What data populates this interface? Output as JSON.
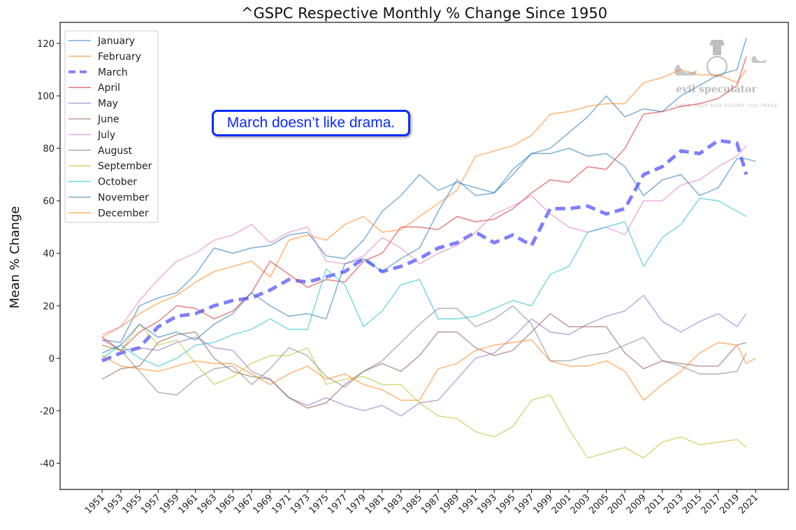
{
  "chart_data": {
    "type": "line",
    "title": "^GSPC Respective Monthly % Change Since 1950",
    "xlabel": "",
    "ylabel": "Mean % Change",
    "ylim": [
      -50,
      128
    ],
    "xlim": [
      1946.5,
      2024.5
    ],
    "yticks": [
      -40,
      -20,
      0,
      20,
      40,
      60,
      80,
      100,
      120
    ],
    "xticks": [
      1951,
      1953,
      1955,
      1957,
      1959,
      1961,
      1963,
      1965,
      1967,
      1969,
      1971,
      1973,
      1975,
      1977,
      1979,
      1981,
      1983,
      1985,
      1987,
      1989,
      1991,
      1993,
      1995,
      1997,
      1999,
      2001,
      2003,
      2005,
      2007,
      2009,
      2011,
      2013,
      2015,
      2017,
      2019,
      2021
    ],
    "legend_position": "top-left",
    "grid": false,
    "annotation": "March doesn’t like drama.",
    "watermark": {
      "name": "evil speculator",
      "tagline": "KNOW YOUR RISK BEFORE YOU TRADE"
    },
    "x": [
      1951,
      1953,
      1955,
      1957,
      1959,
      1961,
      1963,
      1965,
      1967,
      1969,
      1971,
      1973,
      1975,
      1977,
      1979,
      1981,
      1983,
      1985,
      1987,
      1989,
      1991,
      1993,
      1995,
      1997,
      1999,
      2001,
      2003,
      2005,
      2007,
      2009,
      2011,
      2013,
      2015,
      2017,
      2019,
      2020,
      2021
    ],
    "series": [
      {
        "name": "January",
        "color": "#1f77b4",
        "dashed": false,
        "values": [
          7,
          6,
          20,
          23,
          25,
          32,
          42,
          40,
          42,
          43,
          47,
          48,
          39,
          38,
          45,
          56,
          62,
          70,
          64,
          67,
          65,
          63,
          72,
          78,
          80,
          86,
          92,
          100,
          92,
          95,
          94,
          100,
          104,
          108,
          110,
          122,
          null
        ]
      },
      {
        "name": "February",
        "color": "#ff7f0e",
        "dashed": false,
        "values": [
          8,
          12,
          17,
          21,
          24,
          29,
          33,
          35,
          37,
          31,
          45,
          47,
          45,
          51,
          54,
          48,
          49,
          54,
          59,
          64,
          77,
          79,
          81,
          85,
          93,
          94,
          96,
          97,
          97,
          105,
          107,
          110,
          108,
          108,
          105,
          110,
          null
        ]
      },
      {
        "name": "March",
        "color": "#0000ff",
        "dashed": true,
        "values": [
          -1,
          2,
          4,
          12,
          16,
          17,
          20,
          22,
          23,
          26,
          30,
          29,
          31,
          33,
          38,
          33,
          35,
          38,
          42,
          44,
          48,
          44,
          47,
          43,
          57,
          57,
          58,
          55,
          57,
          70,
          73,
          79,
          78,
          83,
          82,
          70,
          null
        ]
      },
      {
        "name": "April",
        "color": "#d62728",
        "dashed": false,
        "values": [
          8,
          3,
          10,
          14,
          20,
          19,
          15,
          18,
          25,
          37,
          32,
          27,
          30,
          29,
          37,
          40,
          50,
          50,
          49,
          54,
          52,
          53,
          57,
          63,
          68,
          67,
          73,
          72,
          80,
          93,
          94,
          96,
          97,
          99,
          104,
          115,
          null
        ]
      },
      {
        "name": "May",
        "color": "#9467bd",
        "dashed": false,
        "values": [
          7,
          3,
          4,
          3,
          6,
          8,
          4,
          3,
          -5,
          -8,
          -15,
          -18,
          -15,
          -18,
          -20,
          -18,
          -22,
          -17,
          -16,
          -8,
          0,
          2,
          8,
          15,
          10,
          9,
          13,
          16,
          18,
          24,
          14,
          10,
          14,
          17,
          12,
          17,
          null
        ]
      },
      {
        "name": "June",
        "color": "#8c564b",
        "dashed": false,
        "values": [
          -8,
          -4,
          -3,
          6,
          9,
          10,
          0,
          -5,
          -7,
          -8,
          -15,
          -19,
          -17,
          -10,
          -5,
          -2,
          -5,
          1,
          10,
          10,
          4,
          1,
          3,
          10,
          17,
          12,
          12,
          12,
          2,
          -4,
          -1,
          -2,
          -3,
          -3,
          5,
          6,
          null
        ]
      },
      {
        "name": "July",
        "color": "#e377c2",
        "dashed": false,
        "values": [
          9,
          12,
          22,
          30,
          37,
          40,
          45,
          47,
          51,
          44,
          48,
          50,
          37,
          36,
          39,
          46,
          42,
          36,
          40,
          43,
          48,
          55,
          58,
          62,
          55,
          50,
          48,
          50,
          47,
          60,
          60,
          66,
          68,
          73,
          77,
          81,
          null
        ]
      },
      {
        "name": "August",
        "color": "#7f7f7f",
        "dashed": false,
        "values": [
          5,
          3,
          -5,
          -13,
          -14,
          -8,
          -4,
          -3,
          -10,
          -4,
          4,
          1,
          -7,
          -11,
          -5,
          -1,
          6,
          13,
          19,
          19,
          12,
          15,
          20,
          13,
          -1,
          -1,
          1,
          2,
          5,
          8,
          -1,
          -3,
          -6,
          -6,
          -5,
          2,
          null
        ]
      },
      {
        "name": "September",
        "color": "#bcbd22",
        "dashed": false,
        "values": [
          5,
          3,
          13,
          5,
          7,
          -2,
          -10,
          -7,
          -2,
          1,
          1,
          4,
          -10,
          -8,
          -7,
          -10,
          -10,
          -17,
          -22,
          -23,
          -28,
          -30,
          -26,
          -16,
          -14,
          -27,
          -38,
          -36,
          -34,
          -38,
          -32,
          -30,
          -33,
          -32,
          -31,
          -34,
          null
        ]
      },
      {
        "name": "October",
        "color": "#17becf",
        "dashed": false,
        "values": [
          0,
          5,
          0,
          -3,
          0,
          5,
          6,
          9,
          11,
          15,
          11,
          11,
          34,
          28,
          12,
          18,
          28,
          30,
          15,
          15,
          16,
          19,
          22,
          20,
          32,
          35,
          48,
          50,
          52,
          35,
          46,
          51,
          61,
          60,
          56,
          54,
          null
        ]
      },
      {
        "name": "November",
        "color": "#1f77b4",
        "dashed": false,
        "values": [
          2,
          5,
          13,
          8,
          10,
          7,
          13,
          17,
          25,
          20,
          16,
          17,
          15,
          36,
          38,
          33,
          38,
          42,
          56,
          68,
          62,
          63,
          70,
          78,
          78,
          80,
          77,
          78,
          73,
          62,
          68,
          70,
          62,
          65,
          76,
          76,
          75
        ]
      },
      {
        "name": "December",
        "color": "#ff7f0e",
        "dashed": false,
        "values": [
          1,
          -3,
          -4,
          -5,
          -3,
          -1,
          -2,
          -2,
          -6,
          -10,
          -6,
          -3,
          -8,
          -6,
          -10,
          -12,
          -16,
          -16,
          -4,
          -2,
          3,
          5,
          6,
          7,
          -1,
          -3,
          -3,
          -1,
          -5,
          -16,
          -10,
          -5,
          2,
          6,
          5,
          -2,
          0
        ]
      }
    ]
  }
}
